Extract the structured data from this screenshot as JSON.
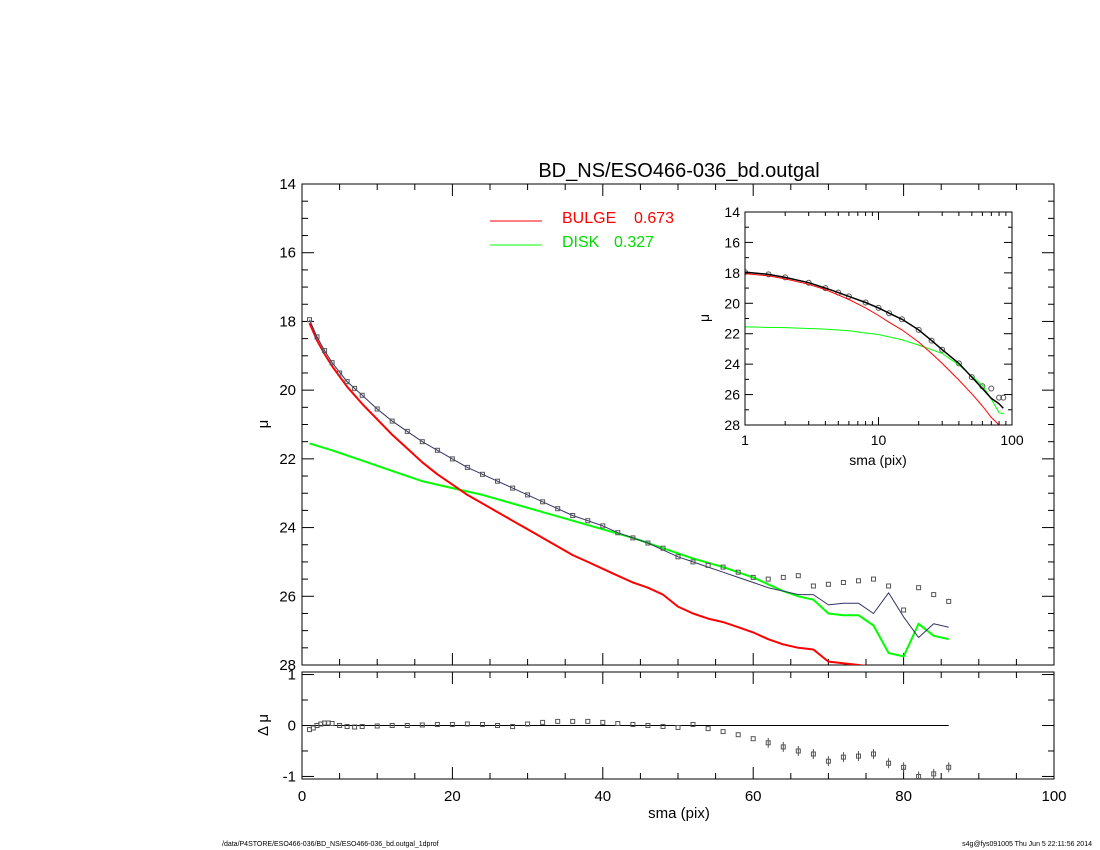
{
  "chart_data": [
    {
      "type": "line",
      "title": "BD_NS/ESO466-036_bd.outgal",
      "xlabel": "",
      "ylabel": "μ",
      "xlim": [
        0,
        100
      ],
      "ylim": [
        28,
        14
      ],
      "y_inverted": true,
      "y_ticks": [
        "14",
        "16",
        "18",
        "20",
        "22",
        "24",
        "26",
        "28"
      ],
      "legend": {
        "placement": "top-center",
        "entries": [
          {
            "label": "BULGE",
            "value": "0.673",
            "color": "#ff0000"
          },
          {
            "label": "DISK",
            "value": "0.327",
            "color": "#00ff00"
          }
        ]
      },
      "series": [
        {
          "key": "observed",
          "style": "square-markers",
          "color": "#555555",
          "x": [
            1,
            2,
            3,
            4,
            5,
            6,
            7,
            8,
            10,
            12,
            14,
            16,
            18,
            20,
            22,
            24,
            26,
            28,
            30,
            32,
            34,
            36,
            38,
            40,
            42,
            44,
            46,
            48,
            50,
            52,
            54,
            56,
            58,
            60,
            62,
            64,
            66,
            68,
            70,
            72,
            74,
            76,
            78,
            80,
            82,
            84,
            86
          ],
          "y": [
            17.95,
            18.45,
            18.85,
            19.2,
            19.5,
            19.75,
            19.95,
            20.15,
            20.55,
            20.9,
            21.2,
            21.5,
            21.75,
            22.0,
            22.25,
            22.45,
            22.65,
            22.85,
            23.05,
            23.25,
            23.45,
            23.65,
            23.8,
            23.95,
            24.15,
            24.3,
            24.45,
            24.6,
            24.85,
            25.0,
            25.1,
            25.15,
            25.3,
            25.45,
            25.5,
            25.45,
            25.4,
            25.7,
            25.65,
            25.6,
            25.55,
            25.5,
            25.7,
            26.4,
            25.75,
            25.95,
            26.15
          ]
        },
        {
          "key": "model",
          "style": "line",
          "color": "#333366",
          "x": [
            1,
            2,
            3,
            4,
            6,
            8,
            10,
            12,
            14,
            16,
            18,
            20,
            22,
            24,
            26,
            28,
            30,
            32,
            34,
            36,
            38,
            40,
            42,
            44,
            46,
            48,
            50,
            52,
            54,
            56,
            58,
            60,
            62,
            64,
            66,
            68,
            70,
            72,
            74,
            76,
            78,
            80,
            82,
            84,
            86
          ],
          "y": [
            17.95,
            18.45,
            18.85,
            19.2,
            19.75,
            20.15,
            20.55,
            20.9,
            21.2,
            21.5,
            21.75,
            22.0,
            22.25,
            22.45,
            22.65,
            22.85,
            23.05,
            23.25,
            23.45,
            23.65,
            23.8,
            23.95,
            24.15,
            24.3,
            24.45,
            24.65,
            24.85,
            25.0,
            25.15,
            25.3,
            25.45,
            25.6,
            25.75,
            25.85,
            25.95,
            25.95,
            26.25,
            26.2,
            26.2,
            26.5,
            25.9,
            26.6,
            27.2,
            26.8,
            26.9
          ]
        },
        {
          "key": "bulge",
          "style": "line",
          "color": "#ff0000",
          "x": [
            1,
            2,
            3,
            4,
            6,
            8,
            10,
            12,
            14,
            16,
            18,
            20,
            22,
            24,
            26,
            28,
            30,
            32,
            34,
            36,
            38,
            40,
            42,
            44,
            46,
            48,
            50,
            52,
            54,
            56,
            58,
            60,
            62,
            64,
            66,
            68,
            70,
            72,
            74,
            76,
            78,
            80
          ],
          "y": [
            18.05,
            18.55,
            18.95,
            19.3,
            19.9,
            20.4,
            20.85,
            21.3,
            21.7,
            22.1,
            22.45,
            22.75,
            23.05,
            23.3,
            23.55,
            23.8,
            24.05,
            24.3,
            24.55,
            24.8,
            25.0,
            25.2,
            25.4,
            25.6,
            25.75,
            25.95,
            26.3,
            26.5,
            26.65,
            26.75,
            26.9,
            27.05,
            27.25,
            27.4,
            27.5,
            27.55,
            27.9,
            27.95,
            28.0,
            28.05,
            28.2,
            28.3
          ]
        },
        {
          "key": "disk",
          "style": "line",
          "color": "#00ff00",
          "x": [
            1,
            4,
            8,
            12,
            16,
            20,
            24,
            28,
            32,
            36,
            40,
            44,
            48,
            52,
            56,
            60,
            62,
            64,
            66,
            68,
            70,
            72,
            74,
            76,
            78,
            80,
            82,
            84,
            86
          ],
          "y": [
            21.55,
            21.75,
            22.05,
            22.35,
            22.65,
            22.85,
            23.05,
            23.3,
            23.55,
            23.8,
            24.05,
            24.3,
            24.6,
            24.9,
            25.15,
            25.45,
            25.65,
            25.85,
            26.0,
            26.1,
            26.5,
            26.55,
            26.55,
            26.85,
            27.65,
            27.75,
            26.8,
            27.15,
            27.25
          ]
        }
      ]
    },
    {
      "type": "scatter",
      "title": "",
      "xlabel": "sma (pix)",
      "ylabel": "Δ μ",
      "xlim": [
        0,
        100
      ],
      "ylim": [
        -1.05,
        1.05
      ],
      "x_ticks": [
        "0",
        "20",
        "40",
        "60",
        "80",
        "100"
      ],
      "y_ticks": [
        "1",
        "0",
        "-1"
      ],
      "zero_line": {
        "x_start": 0,
        "x_end": 86
      },
      "series": [
        {
          "key": "residual",
          "style": "square-markers",
          "color": "#555555",
          "x": [
            1,
            1.5,
            2,
            2.5,
            3,
            3.5,
            4,
            5,
            6,
            7,
            8,
            10,
            12,
            14,
            16,
            18,
            20,
            22,
            24,
            26,
            28,
            30,
            32,
            34,
            36,
            38,
            40,
            42,
            44,
            46,
            48,
            50,
            52,
            54,
            56,
            58,
            60,
            62,
            64,
            66,
            68,
            70,
            72,
            74,
            76,
            78,
            80,
            82,
            84,
            86
          ],
          "y": [
            -0.08,
            -0.05,
            0.0,
            0.03,
            0.05,
            0.05,
            0.04,
            0.0,
            -0.02,
            -0.03,
            -0.02,
            -0.01,
            0.0,
            0.0,
            0.01,
            0.02,
            0.02,
            0.03,
            0.02,
            0.0,
            -0.02,
            0.03,
            0.06,
            0.08,
            0.08,
            0.08,
            0.06,
            0.04,
            0.02,
            0.0,
            -0.02,
            -0.04,
            0.02,
            -0.06,
            -0.12,
            -0.18,
            -0.26,
            -0.34,
            -0.42,
            -0.5,
            -0.56,
            -0.7,
            -0.62,
            -0.6,
            -0.56,
            -0.74,
            -0.82,
            -1.0,
            -0.95,
            -0.82
          ]
        }
      ]
    },
    {
      "type": "line",
      "title": "",
      "xlabel": "sma (pix)",
      "ylabel": "μ",
      "x_scale": "log",
      "xlim": [
        1,
        100
      ],
      "ylim": [
        28,
        14
      ],
      "y_inverted": true,
      "x_ticks": [
        "1",
        "10",
        "100"
      ],
      "y_ticks": [
        "14",
        "16",
        "18",
        "20",
        "22",
        "24",
        "26",
        "28"
      ],
      "series": [
        {
          "key": "observed",
          "style": "circle-markers",
          "color": "#555555",
          "x": [
            1,
            1.5,
            2,
            3,
            4,
            5,
            6,
            8,
            10,
            12,
            15,
            20,
            25,
            30,
            40,
            50,
            60,
            70,
            80,
            86
          ],
          "y": [
            17.95,
            18.1,
            18.3,
            18.65,
            19.0,
            19.3,
            19.55,
            19.95,
            20.3,
            20.65,
            21.05,
            21.75,
            22.45,
            23.05,
            23.95,
            24.85,
            25.45,
            25.6,
            26.2,
            26.2
          ]
        },
        {
          "key": "model",
          "style": "line",
          "color": "#000000",
          "x": [
            1,
            1.5,
            2,
            3,
            4,
            5,
            6,
            8,
            10,
            12,
            15,
            20,
            25,
            30,
            40,
            50,
            60,
            70,
            80,
            86
          ],
          "y": [
            17.95,
            18.1,
            18.3,
            18.65,
            19.0,
            19.3,
            19.55,
            19.95,
            20.3,
            20.65,
            21.05,
            21.75,
            22.45,
            23.05,
            23.95,
            24.85,
            25.6,
            26.25,
            26.6,
            26.9
          ]
        },
        {
          "key": "bulge",
          "style": "line",
          "color": "#ff0000",
          "x": [
            1,
            1.5,
            2,
            3,
            4,
            5,
            6,
            8,
            10,
            12,
            15,
            20,
            25,
            30,
            40,
            50,
            60,
            70,
            80
          ],
          "y": [
            18.05,
            18.2,
            18.4,
            18.75,
            19.1,
            19.45,
            19.75,
            20.3,
            20.8,
            21.25,
            21.75,
            22.55,
            23.3,
            23.95,
            25.05,
            25.95,
            26.75,
            27.5,
            28.0
          ]
        },
        {
          "key": "disk",
          "style": "line",
          "color": "#00ff00",
          "x": [
            1,
            2,
            4,
            6,
            8,
            10,
            15,
            20,
            25,
            30,
            40,
            50,
            60,
            70,
            80,
            86
          ],
          "y": [
            21.55,
            21.6,
            21.7,
            21.8,
            21.95,
            22.05,
            22.4,
            22.75,
            23.05,
            23.3,
            24.05,
            24.8,
            25.4,
            26.3,
            27.2,
            27.25
          ]
        }
      ]
    }
  ],
  "footer": {
    "left": "/data/P4STORE/ESO466-036/BD_NS/ESO466-036_bd.outgal_1dprof",
    "right": "s4g@fys091005  Thu Jun  5 22:11:56 2014"
  }
}
